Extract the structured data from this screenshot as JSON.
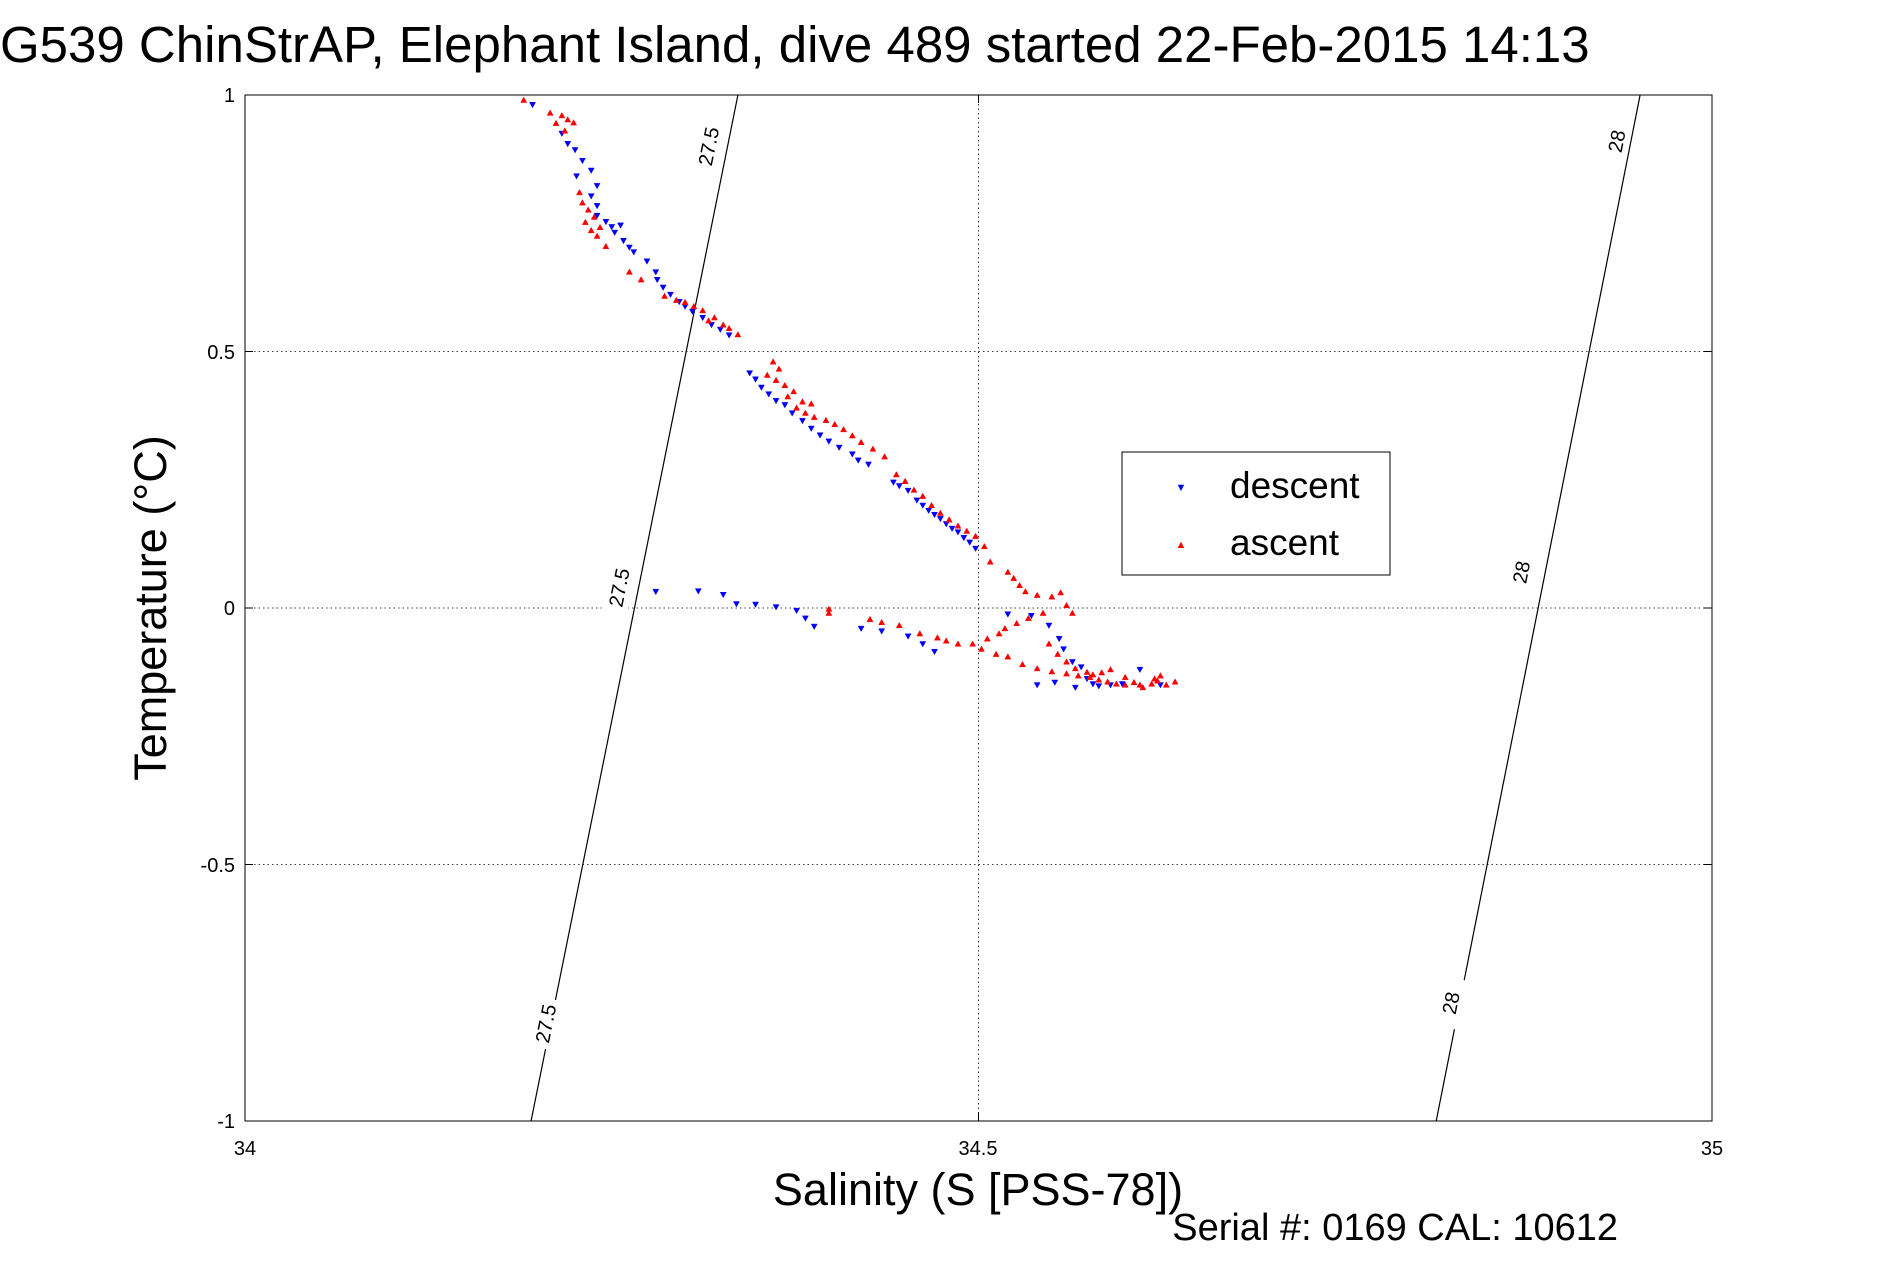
{
  "chart_data": {
    "type": "scatter",
    "title": "G539 ChinStrAP, Elephant Island, dive 489 started 22-Feb-2015 14:13",
    "xlabel": "Salinity (S [PSS-78])",
    "ylabel": "Temperature (°C)",
    "footer": "Serial #: 0169 CAL: 10612",
    "xlim": [
      34,
      35
    ],
    "ylim": [
      -1,
      1
    ],
    "xticks": [
      "34",
      "34.5",
      "35"
    ],
    "yticks": [
      "1",
      "0.5",
      "0",
      "-0.5",
      "-1"
    ],
    "grid": true,
    "legend_position": "right-center",
    "series": [
      {
        "name": "descent",
        "marker": "triangle-down",
        "color": "#0000ff",
        "points": [
          [
            34.196,
            0.981
          ],
          [
            34.216,
            0.925
          ],
          [
            34.22,
            0.905
          ],
          [
            34.225,
            0.893
          ],
          [
            34.23,
            0.872
          ],
          [
            34.236,
            0.853
          ],
          [
            34.226,
            0.842
          ],
          [
            34.24,
            0.823
          ],
          [
            34.236,
            0.803
          ],
          [
            34.24,
            0.784
          ],
          [
            34.24,
            0.765
          ],
          [
            34.246,
            0.753
          ],
          [
            34.25,
            0.743
          ],
          [
            34.256,
            0.746
          ],
          [
            34.252,
            0.732
          ],
          [
            34.258,
            0.716
          ],
          [
            34.262,
            0.703
          ],
          [
            34.265,
            0.694
          ],
          [
            34.274,
            0.676
          ],
          [
            34.28,
            0.655
          ],
          [
            34.281,
            0.64
          ],
          [
            34.285,
            0.625
          ],
          [
            34.29,
            0.611
          ],
          [
            34.296,
            0.597
          ],
          [
            34.3,
            0.588
          ],
          [
            34.305,
            0.578
          ],
          [
            34.312,
            0.566
          ],
          [
            34.318,
            0.552
          ],
          [
            34.324,
            0.543
          ],
          [
            34.33,
            0.532
          ],
          [
            34.344,
            0.458
          ],
          [
            34.348,
            0.446
          ],
          [
            34.352,
            0.43
          ],
          [
            34.357,
            0.417
          ],
          [
            34.362,
            0.404
          ],
          [
            34.368,
            0.396
          ],
          [
            34.373,
            0.38
          ],
          [
            34.38,
            0.365
          ],
          [
            34.386,
            0.35
          ],
          [
            34.392,
            0.337
          ],
          [
            34.398,
            0.325
          ],
          [
            34.405,
            0.313
          ],
          [
            34.414,
            0.3
          ],
          [
            34.418,
            0.288
          ],
          [
            34.425,
            0.28
          ],
          [
            34.442,
            0.245
          ],
          [
            34.446,
            0.238
          ],
          [
            34.452,
            0.229
          ],
          [
            34.458,
            0.21
          ],
          [
            34.462,
            0.2
          ],
          [
            34.466,
            0.19
          ],
          [
            34.47,
            0.182
          ],
          [
            34.474,
            0.174
          ],
          [
            34.478,
            0.164
          ],
          [
            34.482,
            0.155
          ],
          [
            34.486,
            0.148
          ],
          [
            34.49,
            0.137
          ],
          [
            34.494,
            0.128
          ],
          [
            34.498,
            0.116
          ],
          [
            34.28,
            0.032
          ],
          [
            34.309,
            0.033
          ],
          [
            34.326,
            0.026
          ],
          [
            34.335,
            0.008
          ],
          [
            34.348,
            0.007
          ],
          [
            34.362,
            0.002
          ],
          [
            34.376,
            -0.005
          ],
          [
            34.382,
            -0.02
          ],
          [
            34.388,
            -0.036
          ],
          [
            34.42,
            -0.04
          ],
          [
            34.434,
            -0.045
          ],
          [
            34.452,
            -0.055
          ],
          [
            34.462,
            -0.07
          ],
          [
            34.47,
            -0.085
          ],
          [
            34.52,
            -0.012
          ],
          [
            34.536,
            -0.015
          ],
          [
            34.548,
            -0.034
          ],
          [
            34.555,
            -0.06
          ],
          [
            34.558,
            -0.08
          ],
          [
            34.564,
            -0.105
          ],
          [
            34.57,
            -0.115
          ],
          [
            34.574,
            -0.138
          ],
          [
            34.578,
            -0.148
          ],
          [
            34.582,
            -0.152
          ],
          [
            34.59,
            -0.15
          ],
          [
            34.598,
            -0.148
          ],
          [
            34.61,
            -0.12
          ],
          [
            34.624,
            -0.15
          ],
          [
            34.54,
            -0.15
          ],
          [
            34.552,
            -0.145
          ],
          [
            34.566,
            -0.155
          ]
        ]
      },
      {
        "name": "ascent",
        "marker": "triangle-up",
        "color": "#ff0000",
        "points": [
          [
            34.19,
            0.99
          ],
          [
            34.208,
            0.965
          ],
          [
            34.216,
            0.96
          ],
          [
            34.22,
            0.952
          ],
          [
            34.224,
            0.946
          ],
          [
            34.212,
            0.945
          ],
          [
            34.218,
            0.93
          ],
          [
            34.228,
            0.81
          ],
          [
            34.23,
            0.79
          ],
          [
            34.234,
            0.776
          ],
          [
            34.238,
            0.762
          ],
          [
            34.232,
            0.752
          ],
          [
            34.242,
            0.742
          ],
          [
            34.236,
            0.736
          ],
          [
            34.24,
            0.725
          ],
          [
            34.246,
            0.705
          ],
          [
            34.262,
            0.655
          ],
          [
            34.27,
            0.64
          ],
          [
            34.286,
            0.608
          ],
          [
            34.294,
            0.6
          ],
          [
            34.3,
            0.596
          ],
          [
            34.306,
            0.588
          ],
          [
            34.312,
            0.58
          ],
          [
            34.32,
            0.566
          ],
          [
            34.316,
            0.56
          ],
          [
            34.326,
            0.552
          ],
          [
            34.33,
            0.545
          ],
          [
            34.336,
            0.533
          ],
          [
            34.36,
            0.48
          ],
          [
            34.364,
            0.466
          ],
          [
            34.356,
            0.454
          ],
          [
            34.362,
            0.444
          ],
          [
            34.368,
            0.434
          ],
          [
            34.374,
            0.422
          ],
          [
            34.37,
            0.412
          ],
          [
            34.38,
            0.402
          ],
          [
            34.386,
            0.398
          ],
          [
            34.376,
            0.39
          ],
          [
            34.382,
            0.38
          ],
          [
            34.388,
            0.372
          ],
          [
            34.396,
            0.366
          ],
          [
            34.402,
            0.358
          ],
          [
            34.408,
            0.348
          ],
          [
            34.414,
            0.336
          ],
          [
            34.42,
            0.323
          ],
          [
            34.428,
            0.31
          ],
          [
            34.436,
            0.295
          ],
          [
            34.444,
            0.26
          ],
          [
            34.45,
            0.247
          ],
          [
            34.456,
            0.23
          ],
          [
            34.462,
            0.218
          ],
          [
            34.468,
            0.2
          ],
          [
            34.474,
            0.185
          ],
          [
            34.48,
            0.172
          ],
          [
            34.486,
            0.16
          ],
          [
            34.492,
            0.15
          ],
          [
            34.498,
            0.14
          ],
          [
            34.504,
            0.12
          ],
          [
            34.508,
            0.09
          ],
          [
            34.52,
            0.07
          ],
          [
            34.524,
            0.058
          ],
          [
            34.528,
            0.044
          ],
          [
            34.532,
            0.032
          ],
          [
            34.54,
            0.025
          ],
          [
            34.55,
            0.022
          ],
          [
            34.556,
            0.03
          ],
          [
            34.56,
            0.005
          ],
          [
            34.564,
            -0.01
          ],
          [
            34.398,
            -0.002
          ],
          [
            34.398,
            -0.01
          ],
          [
            34.426,
            -0.022
          ],
          [
            34.434,
            -0.028
          ],
          [
            34.446,
            -0.034
          ],
          [
            34.46,
            -0.05
          ],
          [
            34.472,
            -0.058
          ],
          [
            34.478,
            -0.064
          ],
          [
            34.486,
            -0.07
          ],
          [
            34.502,
            -0.08
          ],
          [
            34.512,
            -0.09
          ],
          [
            34.52,
            -0.095
          ],
          [
            34.53,
            -0.11
          ],
          [
            34.54,
            -0.118
          ],
          [
            34.55,
            -0.124
          ],
          [
            34.56,
            -0.128
          ],
          [
            34.568,
            -0.132
          ],
          [
            34.576,
            -0.135
          ],
          [
            34.582,
            -0.14
          ],
          [
            34.588,
            -0.144
          ],
          [
            34.594,
            -0.148
          ],
          [
            34.6,
            -0.15
          ],
          [
            34.61,
            -0.15
          ],
          [
            34.634,
            -0.144
          ],
          [
            34.62,
            -0.138
          ],
          [
            34.624,
            -0.132
          ],
          [
            34.496,
            -0.07
          ],
          [
            34.506,
            -0.06
          ],
          [
            34.514,
            -0.05
          ],
          [
            34.518,
            -0.04
          ],
          [
            34.526,
            -0.03
          ],
          [
            34.534,
            -0.02
          ],
          [
            34.544,
            -0.01
          ],
          [
            34.548,
            -0.07
          ],
          [
            34.554,
            -0.09
          ],
          [
            34.56,
            -0.105
          ],
          [
            34.566,
            -0.118
          ],
          [
            34.574,
            -0.125
          ],
          [
            34.578,
            -0.13
          ],
          [
            34.584,
            -0.126
          ],
          [
            34.59,
            -0.12
          ],
          [
            34.6,
            -0.135
          ],
          [
            34.606,
            -0.145
          ],
          [
            34.612,
            -0.155
          ],
          [
            34.618,
            -0.148
          ],
          [
            34.622,
            -0.142
          ],
          [
            34.628,
            -0.15
          ]
        ]
      }
    ],
    "isopycnals": [
      {
        "label": "27.5",
        "from": [
          34.195,
          -1.0
        ],
        "to": [
          34.336,
          1.0
        ],
        "label_at": [
          [
            34.316,
            0.9
          ],
          [
            34.255,
            0.04
          ],
          [
            34.205,
            -0.81
          ]
        ]
      },
      {
        "label": "28",
        "from": [
          34.812,
          -1.0
        ],
        "to": [
          34.951,
          1.0
        ],
        "label_at": [
          [
            34.935,
            0.91
          ],
          [
            34.87,
            0.07
          ],
          [
            34.822,
            -0.77
          ]
        ]
      }
    ]
  }
}
